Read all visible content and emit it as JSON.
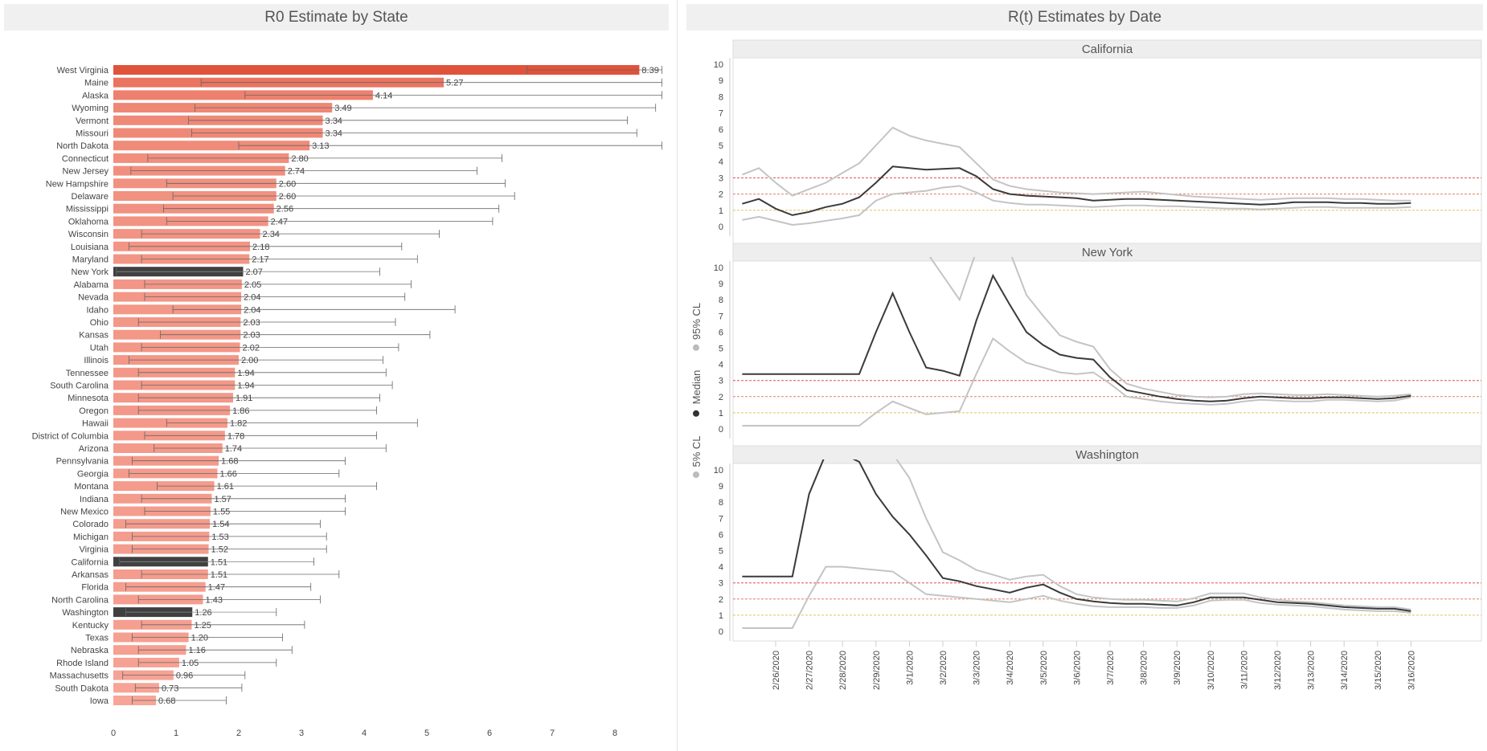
{
  "left_panel": {
    "title": "R0 Estimate by State"
  },
  "right_panel": {
    "title": "R(t) Estimates by Date"
  },
  "colors": {
    "bar_high": "#e0533b",
    "bar_low": "#f7a597",
    "highlight": "#404040",
    "ci_line": "#666666",
    "rt_median": "#3a3a3a",
    "rt_ci": "#c4c4c4",
    "ref_3": "#d9534f",
    "ref_2": "#e08060",
    "ref_1": "#e8c060"
  },
  "legend": {
    "median_label": "Median",
    "ci95_label": "95% CL",
    "ci5_label": "5% CL"
  },
  "chart_data": [
    {
      "type": "bar",
      "title": "R0 Estimate by State",
      "xlim": [
        0,
        8.8
      ],
      "xticks": [
        0,
        1,
        2,
        3,
        4,
        5,
        6,
        7,
        8
      ],
      "categories": [
        "West Virginia",
        "Maine",
        "Alaska",
        "Wyoming",
        "Vermont",
        "Missouri",
        "North Dakota",
        "Connecticut",
        "New Jersey",
        "New Hampshire",
        "Delaware",
        "Mississippi",
        "Oklahoma",
        "Wisconsin",
        "Louisiana",
        "Maryland",
        "New York",
        "Alabama",
        "Nevada",
        "Idaho",
        "Ohio",
        "Kansas",
        "Utah",
        "Illinois",
        "Tennessee",
        "South Carolina",
        "Minnesota",
        "Oregon",
        "Hawaii",
        "District of Columbia",
        "Arizona",
        "Pennsylvania",
        "Georgia",
        "Montana",
        "Indiana",
        "New Mexico",
        "Colorado",
        "Michigan",
        "Virginia",
        "California",
        "Arkansas",
        "Florida",
        "North Carolina",
        "Washington",
        "Kentucky",
        "Texas",
        "Nebraska",
        "Rhode Island",
        "Massachusetts",
        "South Dakota",
        "Iowa"
      ],
      "values": [
        8.39,
        5.27,
        4.14,
        3.49,
        3.34,
        3.34,
        3.13,
        2.8,
        2.74,
        2.6,
        2.6,
        2.56,
        2.47,
        2.34,
        2.18,
        2.17,
        2.07,
        2.05,
        2.04,
        2.04,
        2.03,
        2.03,
        2.02,
        2.0,
        1.94,
        1.94,
        1.91,
        1.86,
        1.82,
        1.78,
        1.74,
        1.68,
        1.66,
        1.61,
        1.57,
        1.55,
        1.54,
        1.53,
        1.52,
        1.51,
        1.51,
        1.47,
        1.43,
        1.26,
        1.25,
        1.2,
        1.16,
        1.05,
        0.96,
        0.73,
        0.68
      ],
      "value_labels": [
        "8.39",
        "5.27",
        "4.14",
        "3.49",
        "3.34",
        "3.34",
        "3.13",
        "2.80",
        "2.74",
        "2.60",
        "2.60",
        "2.56",
        "2.47",
        "2.34",
        "2.18",
        "2.17",
        "2.07",
        "2.05",
        "2.04",
        "2.04",
        "2.03",
        "2.03",
        "2.02",
        "2.00",
        "1.94",
        "1.94",
        "1.91",
        "1.86",
        "1.82",
        "1.78",
        "1.74",
        "1.68",
        "1.66",
        "1.61",
        "1.57",
        "1.55",
        "1.54",
        "1.53",
        "1.52",
        "1.51",
        "1.51",
        "1.47",
        "1.43",
        "1.26",
        "1.25",
        "1.20",
        "1.16",
        "1.05",
        "0.96",
        "0.73",
        "0.68"
      ],
      "ci_low": [
        6.6,
        1.4,
        2.1,
        1.3,
        1.2,
        1.25,
        2.0,
        0.55,
        0.28,
        0.85,
        0.95,
        0.8,
        0.85,
        0.45,
        0.25,
        0.45,
        0.05,
        0.5,
        0.5,
        0.95,
        0.4,
        0.75,
        0.45,
        0.25,
        0.4,
        0.45,
        0.4,
        0.4,
        0.85,
        0.5,
        0.65,
        0.3,
        0.25,
        0.7,
        0.45,
        0.5,
        0.2,
        0.3,
        0.3,
        0.1,
        0.45,
        0.2,
        0.4,
        0.2,
        0.45,
        0.3,
        0.4,
        0.4,
        0.15,
        0.35,
        0.3
      ],
      "ci_high": [
        8.75,
        8.75,
        8.75,
        8.65,
        8.2,
        8.35,
        8.75,
        6.2,
        5.8,
        6.25,
        6.4,
        6.15,
        6.05,
        5.2,
        4.6,
        4.85,
        4.25,
        4.75,
        4.65,
        5.45,
        4.5,
        5.05,
        4.55,
        4.3,
        4.35,
        4.45,
        4.25,
        4.2,
        4.85,
        4.2,
        4.35,
        3.7,
        3.6,
        4.2,
        3.7,
        3.7,
        3.3,
        3.4,
        3.4,
        3.2,
        3.6,
        3.15,
        3.3,
        2.6,
        3.05,
        2.7,
        2.85,
        2.6,
        2.1,
        2.05,
        1.8
      ],
      "highlighted": [
        "New York",
        "California",
        "Washington"
      ]
    },
    {
      "type": "line",
      "title": "R(t) Estimates by Date",
      "dates": [
        "2/26/2020",
        "2/27/2020",
        "2/28/2020",
        "2/29/2020",
        "3/1/2020",
        "3/2/2020",
        "3/3/2020",
        "3/4/2020",
        "3/5/2020",
        "3/6/2020",
        "3/7/2020",
        "3/8/2020",
        "3/9/2020",
        "3/10/2020",
        "3/11/2020",
        "3/12/2020",
        "3/13/2020",
        "3/14/2020",
        "3/15/2020",
        "3/16/2020"
      ],
      "ylim": [
        0,
        10
      ],
      "yticks": [
        0,
        1,
        2,
        3,
        4,
        5,
        6,
        7,
        8,
        9,
        10
      ],
      "reference_lines": [
        3,
        2,
        1
      ],
      "panels": [
        {
          "name": "California",
          "x": [
            -1,
            -0.5,
            0,
            0.5,
            1,
            1.5,
            2,
            2.5,
            3,
            3.5,
            4,
            4.5,
            5,
            5.5,
            6,
            6.5,
            7,
            7.5,
            8,
            8.5,
            9,
            9.5,
            10,
            10.5,
            11,
            11.5,
            12,
            12.5,
            13,
            13.5,
            14,
            14.5,
            15,
            15.5,
            16,
            16.5,
            17,
            17.5,
            18,
            18.5,
            19
          ],
          "median": [
            1.4,
            1.7,
            1.1,
            0.7,
            0.9,
            1.2,
            1.4,
            1.8,
            2.7,
            3.7,
            3.6,
            3.5,
            3.55,
            3.6,
            3.1,
            2.3,
            2.0,
            1.9,
            1.85,
            1.8,
            1.75,
            1.6,
            1.65,
            1.7,
            1.7,
            1.65,
            1.6,
            1.55,
            1.5,
            1.45,
            1.4,
            1.35,
            1.4,
            1.5,
            1.5,
            1.5,
            1.45,
            1.45,
            1.4,
            1.4,
            1.45
          ],
          "ci_high": [
            3.2,
            3.6,
            2.7,
            1.9,
            2.3,
            2.7,
            3.3,
            3.9,
            5.0,
            6.1,
            5.6,
            5.3,
            5.1,
            4.9,
            3.9,
            2.9,
            2.5,
            2.3,
            2.2,
            2.1,
            2.05,
            2.0,
            2.05,
            2.1,
            2.15,
            2.05,
            1.95,
            1.85,
            1.8,
            1.75,
            1.7,
            1.65,
            1.7,
            1.75,
            1.75,
            1.75,
            1.7,
            1.7,
            1.65,
            1.6,
            1.6
          ],
          "ci_low": [
            0.4,
            0.6,
            0.35,
            0.1,
            0.2,
            0.35,
            0.5,
            0.7,
            1.6,
            2.0,
            2.1,
            2.2,
            2.4,
            2.5,
            2.1,
            1.6,
            1.45,
            1.35,
            1.35,
            1.3,
            1.25,
            1.2,
            1.25,
            1.3,
            1.3,
            1.25,
            1.25,
            1.2,
            1.15,
            1.1,
            1.1,
            1.05,
            1.1,
            1.15,
            1.2,
            1.2,
            1.15,
            1.15,
            1.15,
            1.15,
            1.2
          ]
        },
        {
          "name": "New York",
          "x": [
            -1,
            -0.5,
            0,
            0.5,
            1,
            1.5,
            2,
            2.5,
            3,
            3.5,
            4,
            4.5,
            5,
            5.5,
            6,
            6.5,
            7,
            7.5,
            8,
            8.5,
            9,
            9.5,
            10,
            10.5,
            11,
            11.5,
            12,
            12.5,
            13,
            13.5,
            14,
            14.5,
            15,
            15.5,
            16,
            16.5,
            17,
            17.5,
            18,
            18.5,
            19
          ],
          "median": [
            3.4,
            3.4,
            3.4,
            3.4,
            3.4,
            3.4,
            3.4,
            3.4,
            6.0,
            8.4,
            6.0,
            3.8,
            3.6,
            3.3,
            6.7,
            9.5,
            7.7,
            6.0,
            5.2,
            4.6,
            4.4,
            4.3,
            3.2,
            2.4,
            2.2,
            2.0,
            1.85,
            1.75,
            1.7,
            1.75,
            1.9,
            2.0,
            1.95,
            1.9,
            1.9,
            1.95,
            1.95,
            1.9,
            1.85,
            1.9,
            2.05
          ],
          "ci_high": [
            null,
            null,
            null,
            null,
            null,
            null,
            null,
            null,
            null,
            null,
            null,
            11,
            9.5,
            8.0,
            11,
            11,
            11,
            8.3,
            7.0,
            5.8,
            5.4,
            5.1,
            3.7,
            2.8,
            2.5,
            2.3,
            2.1,
            2.0,
            1.95,
            2.0,
            2.15,
            2.2,
            2.15,
            2.1,
            2.1,
            2.15,
            2.1,
            2.05,
            2.0,
            2.05,
            2.15
          ],
          "ci_low": [
            0.2,
            0.2,
            0.2,
            0.2,
            0.2,
            0.2,
            0.2,
            0.2,
            1.0,
            1.7,
            1.3,
            0.9,
            1.0,
            1.1,
            3.4,
            5.6,
            4.8,
            4.1,
            3.8,
            3.5,
            3.4,
            3.5,
            2.8,
            2.0,
            1.85,
            1.7,
            1.6,
            1.55,
            1.5,
            1.55,
            1.7,
            1.8,
            1.75,
            1.7,
            1.7,
            1.8,
            1.8,
            1.75,
            1.7,
            1.75,
            1.95
          ]
        },
        {
          "name": "Washington",
          "x": [
            -1,
            -0.5,
            0,
            0.5,
            1,
            1.5,
            2,
            2.5,
            3,
            3.5,
            4,
            4.5,
            5,
            5.5,
            6,
            6.5,
            7,
            7.5,
            8,
            8.5,
            9,
            9.5,
            10,
            10.5,
            11,
            11.5,
            12,
            12.5,
            13,
            13.5,
            14,
            14.5,
            15,
            15.5,
            16,
            16.5,
            17,
            17.5,
            18,
            18.5,
            19
          ],
          "median": [
            3.4,
            3.4,
            3.4,
            3.4,
            8.5,
            11,
            11,
            10.5,
            8.5,
            7.1,
            6.0,
            4.7,
            3.3,
            3.1,
            2.8,
            2.6,
            2.4,
            2.7,
            2.9,
            2.4,
            2.0,
            1.85,
            1.75,
            1.7,
            1.7,
            1.65,
            1.6,
            1.8,
            2.1,
            2.1,
            2.1,
            1.95,
            1.8,
            1.75,
            1.7,
            1.6,
            1.5,
            1.45,
            1.4,
            1.4,
            1.25
          ],
          "ci_high": [
            null,
            null,
            null,
            null,
            null,
            null,
            null,
            null,
            null,
            11,
            9.5,
            7.0,
            4.9,
            4.4,
            3.8,
            3.5,
            3.2,
            3.4,
            3.5,
            2.8,
            2.3,
            2.1,
            2.0,
            1.95,
            1.95,
            1.9,
            1.85,
            2.05,
            2.35,
            2.35,
            2.35,
            2.1,
            1.95,
            1.85,
            1.8,
            1.7,
            1.6,
            1.55,
            1.5,
            1.5,
            1.35
          ],
          "ci_low": [
            0.2,
            0.2,
            0.2,
            0.2,
            2.2,
            4.0,
            4.0,
            3.9,
            3.8,
            3.7,
            3.0,
            2.3,
            2.2,
            2.1,
            2.0,
            1.9,
            1.8,
            2.0,
            2.2,
            1.9,
            1.7,
            1.55,
            1.5,
            1.5,
            1.5,
            1.45,
            1.45,
            1.6,
            1.9,
            1.95,
            1.95,
            1.75,
            1.65,
            1.6,
            1.55,
            1.45,
            1.35,
            1.3,
            1.25,
            1.25,
            1.15
          ]
        }
      ]
    }
  ]
}
